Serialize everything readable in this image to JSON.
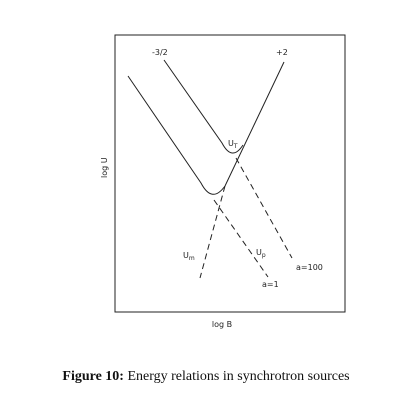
{
  "figure": {
    "labels": {
      "slope_left": "-3/2",
      "slope_right": "+2",
      "u_total": {
        "main": "U",
        "sub": "T"
      },
      "u_magnetic": {
        "main": "U",
        "sub": "m"
      },
      "u_particle": {
        "main": "U",
        "sub": "p"
      },
      "a_high": "a=100",
      "a_low": "a=1"
    },
    "y_axis_label": "log U",
    "x_axis_label": "log B",
    "caption": {
      "number": "Figure 10:",
      "text": "Energy relations in synchrotron sources"
    }
  }
}
